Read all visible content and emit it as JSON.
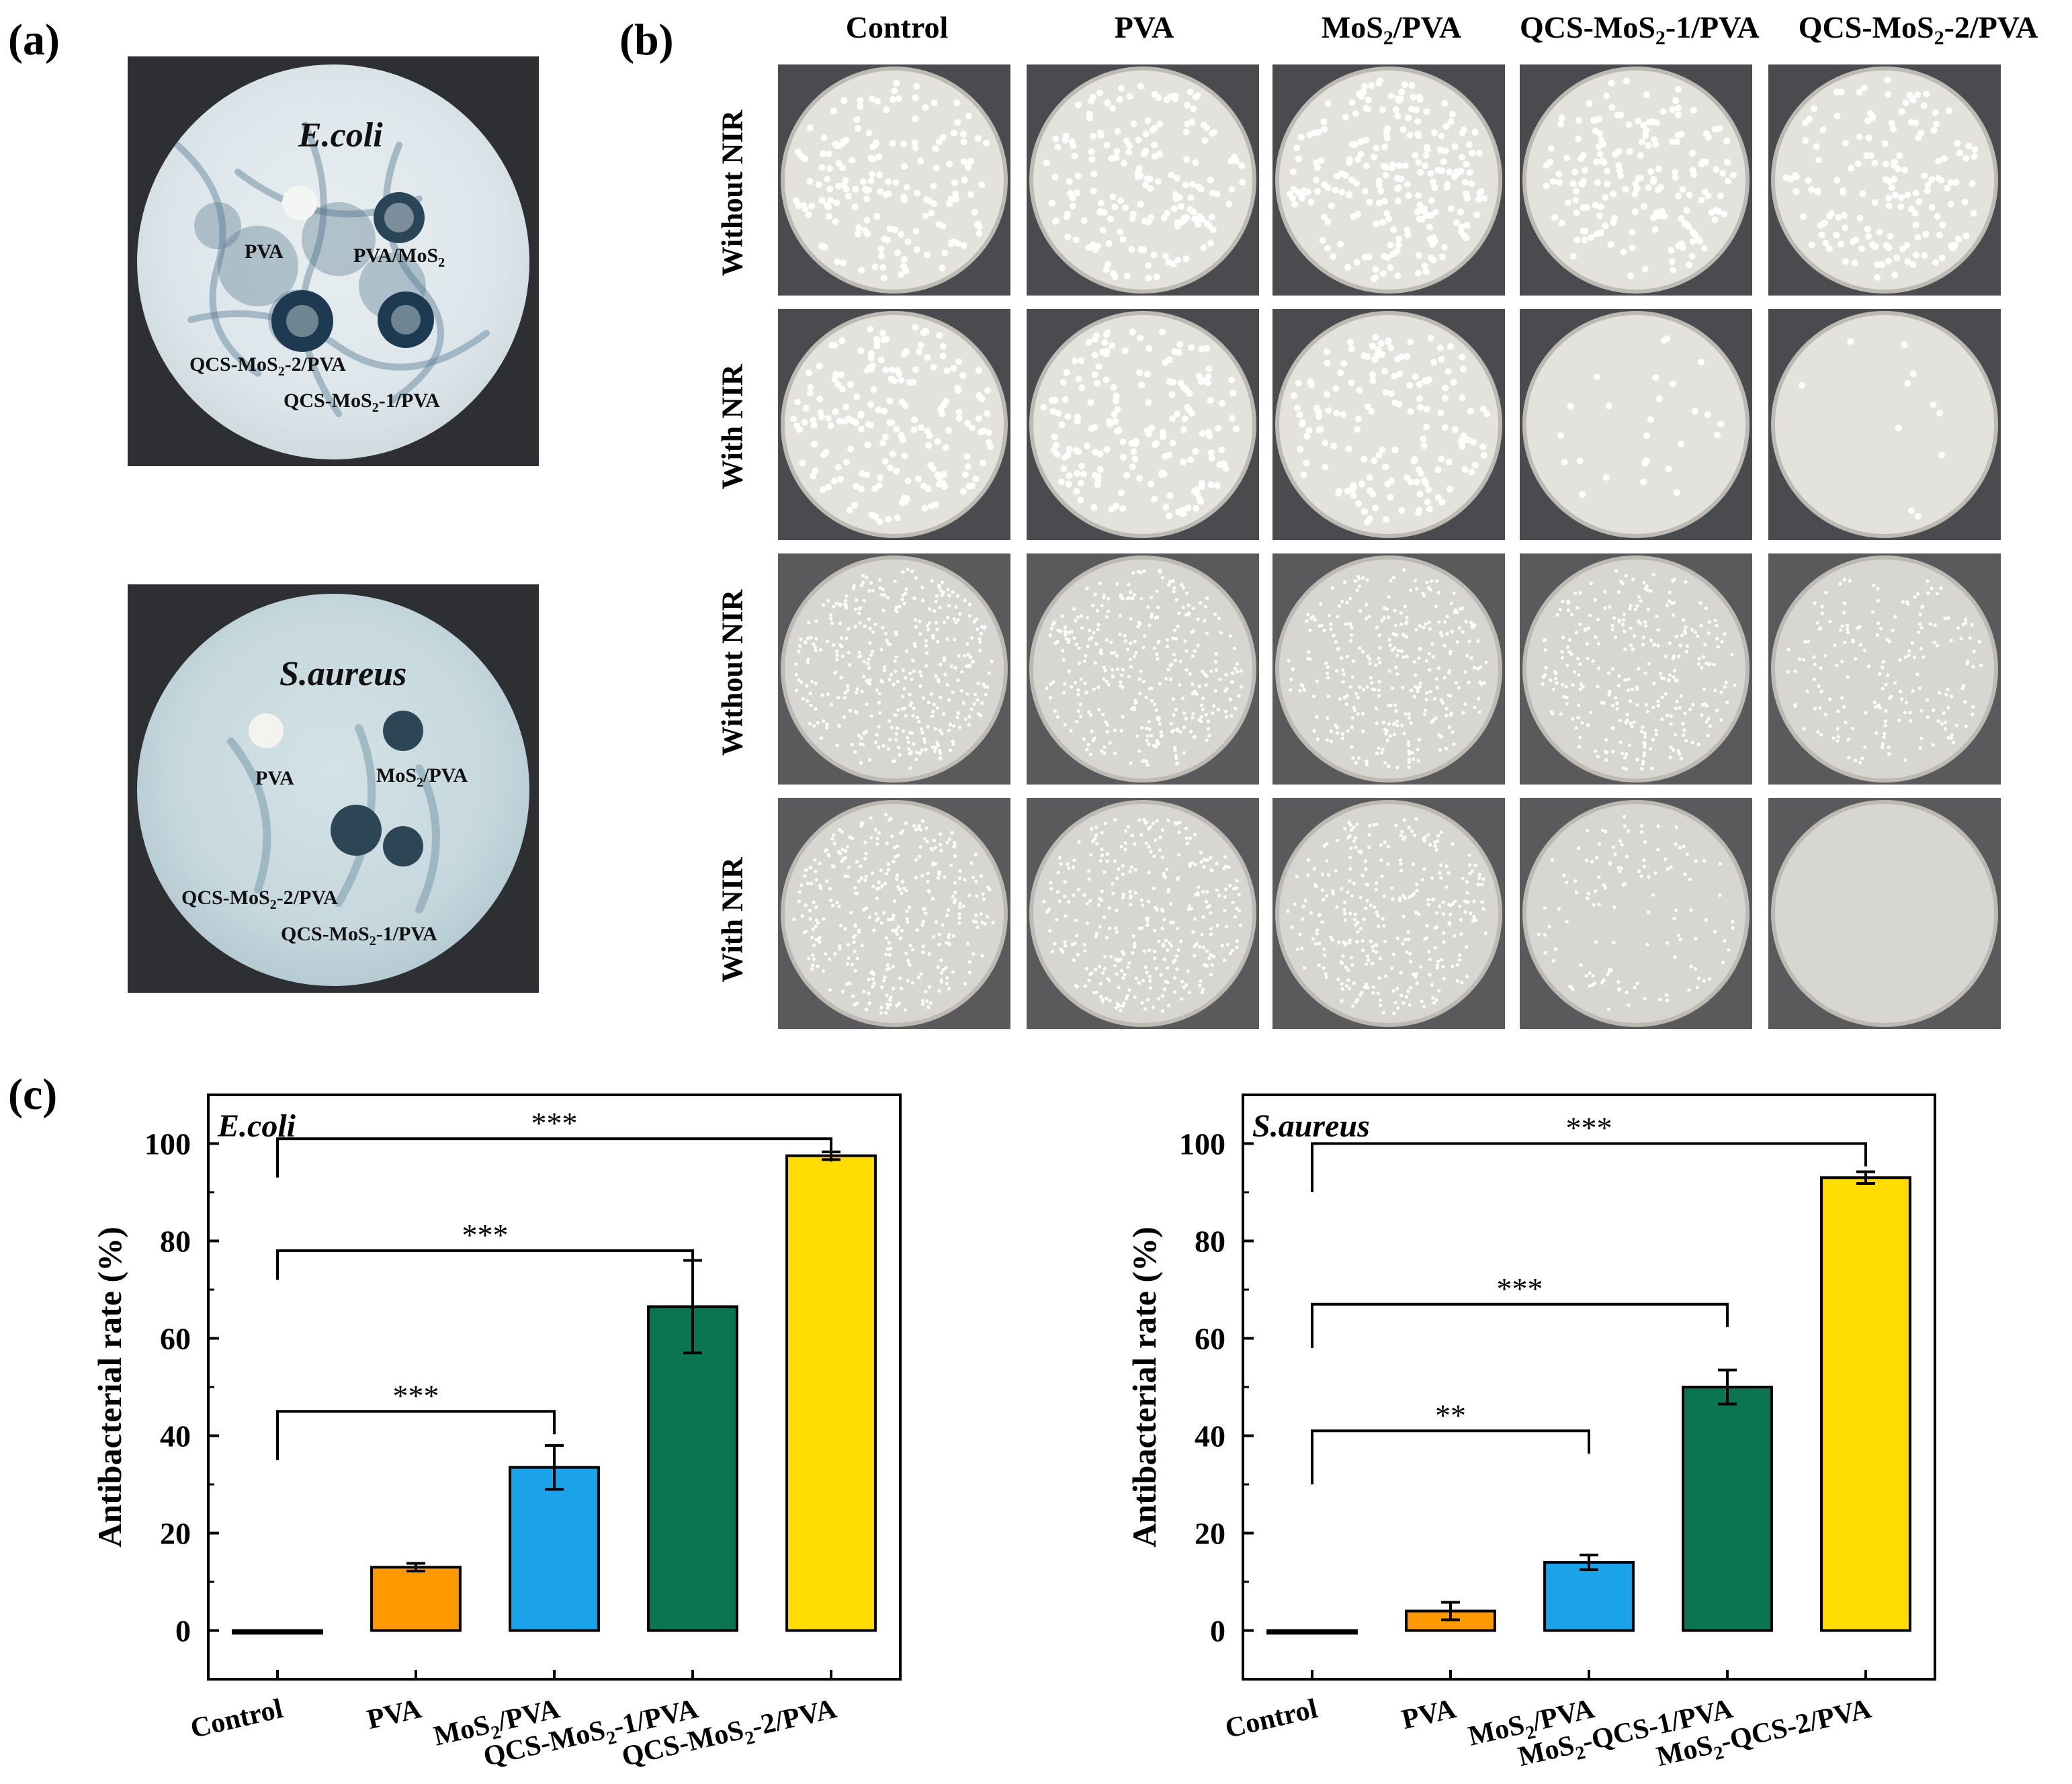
{
  "panels": {
    "a": {
      "letter": "(a)",
      "plates": [
        {
          "title": "E.coli",
          "labels": {
            "l1": "PVA",
            "l2": "PVA/MoS",
            "l2_sub": "2",
            "l3": "QCS-MoS",
            "l3_sub": "2",
            "l3_tail": "-2/PVA",
            "l4": "QCS-MoS",
            "l4_sub": "2",
            "l4_tail": "-1/PVA"
          }
        },
        {
          "title": "S.aureus",
          "labels": {
            "l1": "PVA",
            "l2": "MoS",
            "l2_sub": "2",
            "l2_tail": "/PVA",
            "l3": "QCS-MoS",
            "l3_sub": "2",
            "l3_tail": "-2/PVA",
            "l4": "QCS-MoS",
            "l4_sub": "2",
            "l4_tail": "-1/PVA"
          }
        }
      ]
    },
    "b": {
      "letter": "(b)",
      "columns": [
        {
          "main": "Control",
          "sub": "",
          "tail": ""
        },
        {
          "main": "PVA",
          "sub": "",
          "tail": ""
        },
        {
          "main": "MoS",
          "sub": "2",
          "tail": "/PVA"
        },
        {
          "main": "QCS-MoS",
          "sub": "2",
          "tail": "-1/PVA"
        },
        {
          "main": "QCS-MoS",
          "sub": "2",
          "tail": "-2/PVA"
        }
      ],
      "rows": [
        "Without  NIR",
        "With NIR",
        "Without  NIR",
        "With NIR"
      ],
      "colony_density": [
        [
          0.75,
          0.8,
          1.0,
          0.8,
          0.7
        ],
        [
          0.85,
          0.8,
          0.7,
          0.12,
          0.05
        ],
        [
          0.9,
          0.8,
          0.75,
          0.7,
          0.45
        ],
        [
          0.85,
          0.8,
          0.75,
          0.3,
          0.0
        ]
      ]
    },
    "c": {
      "letter": "(c)"
    }
  },
  "chart_data": [
    {
      "type": "bar",
      "title": "E.coli",
      "ylabel": "Antibacterial rate (%)",
      "xlabel": "",
      "ylim": [
        -10,
        110
      ],
      "yticks": [
        0,
        20,
        40,
        60,
        80,
        100
      ],
      "categories": [
        {
          "main": "Control",
          "sub": "",
          "tail": ""
        },
        {
          "main": "PVA",
          "sub": "",
          "tail": ""
        },
        {
          "main": "MoS",
          "sub": "2",
          "tail": "/PVA"
        },
        {
          "main": "QCS-MoS",
          "sub": "2",
          "tail": "-1/PVA"
        },
        {
          "main": "QCS-MoS",
          "sub": "2",
          "tail": "-2/PVA"
        }
      ],
      "values": [
        0,
        13,
        33.5,
        66.5,
        97.5
      ],
      "errors": [
        0,
        0.8,
        4.5,
        9.5,
        0.8
      ],
      "colors": [
        "#000000",
        "#ff9900",
        "#1aa3e8",
        "#0a7550",
        "#ffdd00"
      ],
      "significance": [
        {
          "from": 0,
          "to": 2,
          "label": "***",
          "height": 45,
          "start": 35
        },
        {
          "from": 0,
          "to": 3,
          "label": "***",
          "height": 78,
          "start": 72
        },
        {
          "from": 0,
          "to": 4,
          "label": "***",
          "height": 101,
          "start": 93
        }
      ]
    },
    {
      "type": "bar",
      "title": "S.aureus",
      "ylabel": "Antibacterial rate (%)",
      "xlabel": "",
      "ylim": [
        -10,
        110
      ],
      "yticks": [
        0,
        20,
        40,
        60,
        80,
        100
      ],
      "categories": [
        {
          "main": "Control",
          "sub": "",
          "tail": ""
        },
        {
          "main": "PVA",
          "sub": "",
          "tail": ""
        },
        {
          "main": "MoS",
          "sub": "2",
          "tail": "/PVA"
        },
        {
          "main": "MoS",
          "sub": "2",
          "tail": "-QCS-1/PVA"
        },
        {
          "main": "MoS",
          "sub": "2",
          "tail": "-QCS-2/PVA"
        }
      ],
      "values": [
        0,
        4,
        14,
        50,
        93
      ],
      "errors": [
        0,
        1.8,
        1.5,
        3.5,
        1.2
      ],
      "colors": [
        "#000000",
        "#ff9900",
        "#1aa3e8",
        "#0a7550",
        "#ffdd00"
      ],
      "significance": [
        {
          "from": 0,
          "to": 2,
          "label": "**",
          "height": 41,
          "start": 30
        },
        {
          "from": 0,
          "to": 3,
          "label": "***",
          "height": 67,
          "start": 58
        },
        {
          "from": 0,
          "to": 4,
          "label": "***",
          "height": 100,
          "start": 90
        }
      ]
    }
  ]
}
